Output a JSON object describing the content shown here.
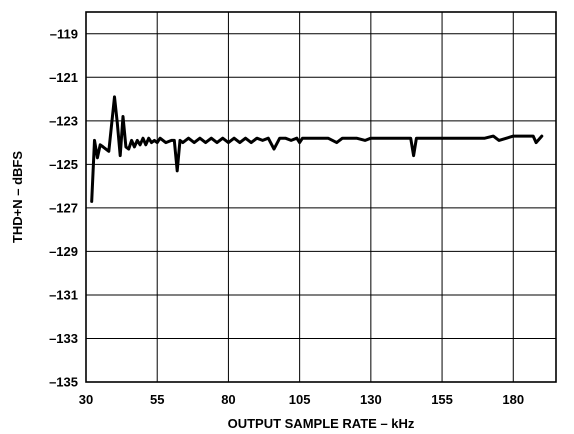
{
  "chart_data": {
    "type": "line",
    "xlabel": "OUTPUT SAMPLE RATE – kHz",
    "ylabel": "THD+N – dBFS",
    "xlim": [
      30,
      195
    ],
    "ylim": [
      -135,
      -118
    ],
    "x_ticks": [
      30,
      55,
      80,
      105,
      130,
      155,
      180
    ],
    "x_tick_labels": [
      "30",
      "55",
      "80",
      "105",
      "130",
      "155",
      "180"
    ],
    "y_ticks": [
      -119,
      -121,
      -123,
      -125,
      -127,
      -129,
      -131,
      -133,
      -135
    ],
    "y_tick_labels": [
      "–119",
      "–121",
      "–123",
      "–125",
      "–127",
      "–129",
      "–131",
      "–133",
      "–135"
    ],
    "grid": true,
    "series": [
      {
        "color": "#000000",
        "x": [
          32,
          33,
          34,
          35,
          36,
          38,
          40,
          41,
          42,
          43,
          44,
          45,
          46,
          47,
          48,
          49,
          50,
          51,
          52,
          53,
          54,
          55,
          56,
          58,
          60,
          61,
          62,
          63,
          64,
          66,
          68,
          70,
          72,
          74,
          76,
          78,
          80,
          82,
          84,
          86,
          88,
          90,
          92,
          94,
          96,
          98,
          100,
          102,
          104,
          105,
          106,
          110,
          115,
          118,
          120,
          125,
          128,
          130,
          135,
          140,
          144,
          145,
          146,
          150,
          155,
          160,
          165,
          170,
          173,
          175,
          180,
          185,
          187,
          188,
          190
        ],
        "y": [
          -126.7,
          -123.9,
          -124.7,
          -124.1,
          -124.2,
          -124.4,
          -121.9,
          -123.1,
          -124.6,
          -122.8,
          -124.2,
          -124.3,
          -123.9,
          -124.2,
          -123.9,
          -124.1,
          -123.8,
          -124.1,
          -123.8,
          -124.0,
          -123.9,
          -124.0,
          -123.8,
          -124.0,
          -123.9,
          -123.9,
          -125.3,
          -123.9,
          -124.0,
          -123.8,
          -124.0,
          -123.8,
          -124.0,
          -123.8,
          -124.0,
          -123.8,
          -124.0,
          -123.8,
          -124.0,
          -123.8,
          -124.0,
          -123.8,
          -123.9,
          -123.8,
          -124.3,
          -123.8,
          -123.8,
          -123.9,
          -123.8,
          -124.0,
          -123.8,
          -123.8,
          -123.8,
          -124.0,
          -123.8,
          -123.8,
          -123.9,
          -123.8,
          -123.8,
          -123.8,
          -123.8,
          -124.6,
          -123.8,
          -123.8,
          -123.8,
          -123.8,
          -123.8,
          -123.8,
          -123.7,
          -123.9,
          -123.7,
          -123.7,
          -123.7,
          -124.0,
          -123.7
        ]
      }
    ]
  }
}
